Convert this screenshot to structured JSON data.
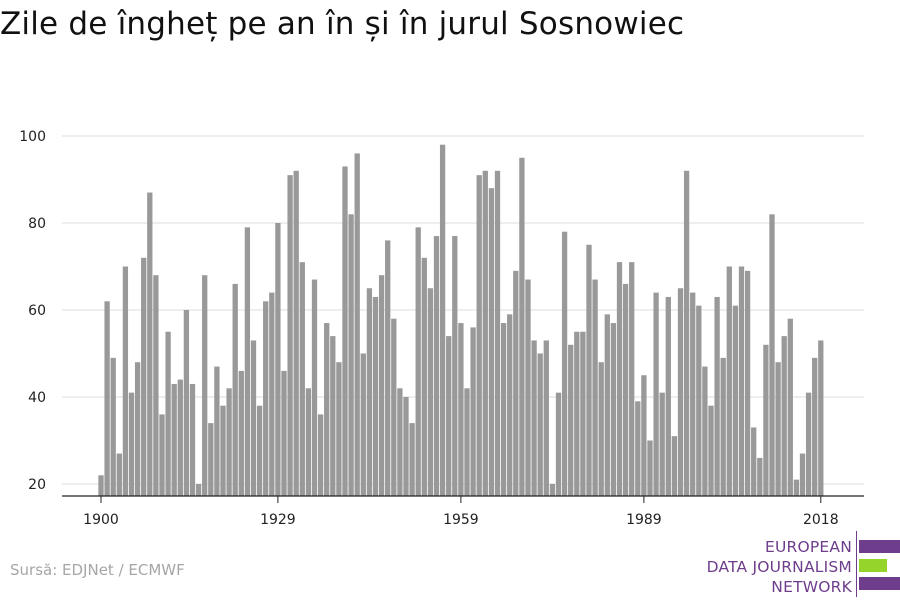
{
  "title": "Zile de îngheț pe an în și în jurul Sosnowiec",
  "source": "Sursă: EDJNet / ECMWF",
  "logo": {
    "lines": [
      "EUROPEAN",
      "DATA JOURNALISM",
      "NETWORK"
    ],
    "colors": {
      "purple": "#6e3d8c",
      "green": "#95d42a"
    }
  },
  "colors": {
    "bar": "#999999",
    "grid": "#dddddd",
    "axis": "#222222"
  },
  "chart_data": {
    "type": "bar",
    "title": "Zile de îngheț pe an în și în jurul Sosnowiec",
    "xlabel": "",
    "ylabel": "",
    "ylim": [
      20,
      100
    ],
    "yticks": [
      20,
      40,
      60,
      80,
      100
    ],
    "xticks": [
      1900,
      1929,
      1959,
      1989,
      2018
    ],
    "grid": true,
    "start_year": 1900,
    "x": [
      1900,
      1901,
      1902,
      1903,
      1904,
      1905,
      1906,
      1907,
      1908,
      1909,
      1910,
      1911,
      1912,
      1913,
      1914,
      1915,
      1916,
      1917,
      1918,
      1919,
      1920,
      1921,
      1922,
      1923,
      1924,
      1925,
      1926,
      1927,
      1928,
      1929,
      1930,
      1931,
      1932,
      1933,
      1934,
      1935,
      1936,
      1937,
      1938,
      1939,
      1940,
      1941,
      1942,
      1943,
      1944,
      1945,
      1946,
      1947,
      1948,
      1949,
      1950,
      1951,
      1952,
      1953,
      1954,
      1955,
      1956,
      1957,
      1958,
      1959,
      1960,
      1961,
      1962,
      1963,
      1964,
      1965,
      1966,
      1967,
      1968,
      1969,
      1970,
      1971,
      1972,
      1973,
      1974,
      1975,
      1976,
      1977,
      1978,
      1979,
      1980,
      1981,
      1982,
      1983,
      1984,
      1985,
      1986,
      1987,
      1988,
      1989,
      1990,
      1991,
      1992,
      1993,
      1994,
      1995,
      1996,
      1997,
      1998,
      1999,
      2000,
      2001,
      2002,
      2003,
      2004,
      2005,
      2006,
      2007,
      2008,
      2009,
      2010,
      2011,
      2012,
      2013,
      2014,
      2015,
      2016,
      2017,
      2018
    ],
    "values": [
      22,
      62,
      49,
      27,
      70,
      41,
      48,
      72,
      87,
      68,
      36,
      55,
      43,
      44,
      60,
      43,
      20,
      68,
      34,
      47,
      38,
      42,
      66,
      46,
      79,
      53,
      38,
      62,
      64,
      80,
      46,
      91,
      92,
      71,
      42,
      67,
      36,
      57,
      54,
      48,
      93,
      82,
      96,
      50,
      65,
      63,
      68,
      76,
      58,
      42,
      40,
      34,
      79,
      72,
      65,
      77,
      98,
      54,
      77,
      57,
      42,
      56,
      91,
      92,
      88,
      92,
      57,
      59,
      69,
      95,
      67,
      53,
      50,
      53,
      20,
      41,
      78,
      52,
      55,
      55,
      75,
      67,
      48,
      59,
      57,
      71,
      66,
      71,
      39,
      45,
      30,
      64,
      41,
      63,
      31,
      65,
      92,
      64,
      61,
      47,
      38,
      63,
      49,
      70,
      61,
      70,
      69,
      33,
      26,
      52,
      82,
      48,
      54,
      58,
      21,
      27,
      41,
      49,
      53
    ]
  }
}
